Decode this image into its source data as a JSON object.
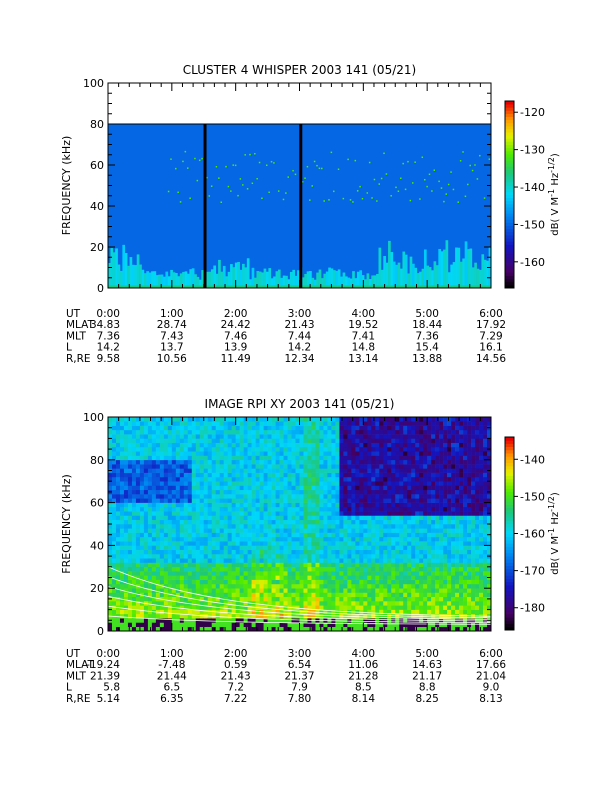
{
  "chart_data": [
    {
      "type": "heatmap",
      "title": "CLUSTER 4 WHISPER 2003 141 (05/21)",
      "ylabel": "FREQUENCY (kHz)",
      "ylim": [
        0,
        100
      ],
      "yticks": [
        "0",
        "20",
        "40",
        "60",
        "80",
        "100"
      ],
      "xlim_hours": [
        0,
        6
      ],
      "colorbar": {
        "label": "dB( V M^-1 Hz^-1/2 )",
        "range": [
          -167,
          -117
        ],
        "ticks": [
          "-120",
          "-130",
          "-140",
          "-150",
          "-160"
        ]
      },
      "data_upper_freq_khz": 80,
      "background_level_db": -150,
      "vertical_gaps_hours": [
        1.52,
        3.02
      ],
      "ephemeris": {
        "labels": [
          "UT",
          "MLAT",
          "MLT",
          "L",
          "R,RE"
        ],
        "ut": [
          "0:00",
          "1:00",
          "2:00",
          "3:00",
          "4:00",
          "5:00",
          "6:00"
        ],
        "mlat": [
          "34.83",
          "28.74",
          "24.42",
          "21.43",
          "19.52",
          "18.44",
          "17.92"
        ],
        "mlt": [
          "7.36",
          "7.43",
          "7.46",
          "7.44",
          "7.41",
          "7.36",
          "7.29"
        ],
        "l": [
          "14.2",
          "13.7",
          "13.9",
          "14.2",
          "14.8",
          "15.4",
          "16.1"
        ],
        "r_re": [
          "9.58",
          "10.56",
          "11.49",
          "12.34",
          "13.14",
          "13.88",
          "14.56"
        ]
      }
    },
    {
      "type": "heatmap",
      "title": "IMAGE RPI XY 2003 141 (05/21)",
      "ylabel": "FREQUENCY (kHz)",
      "ylim": [
        0,
        100
      ],
      "yticks": [
        "0",
        "20",
        "40",
        "60",
        "80",
        "100"
      ],
      "xlim_hours": [
        0,
        6
      ],
      "colorbar": {
        "label": "dB( V M^-1 Hz^-1/2 )",
        "range": [
          -186,
          -134
        ],
        "ticks": [
          "-140",
          "-150",
          "-160",
          "-170",
          "-180"
        ]
      },
      "ephemeris": {
        "labels": [
          "UT",
          "MLAT",
          "MLT",
          "L",
          "R,RE"
        ],
        "ut": [
          "0:00",
          "1:00",
          "2:00",
          "3:00",
          "4:00",
          "5:00",
          "6:00"
        ],
        "mlat": [
          "-19.24",
          "-7.48",
          "0.59",
          "6.54",
          "11.06",
          "14.63",
          "17.66"
        ],
        "mlt": [
          "21.39",
          "21.44",
          "21.43",
          "21.37",
          "21.28",
          "21.17",
          "21.04"
        ],
        "l": [
          "5.8",
          "6.5",
          "7.2",
          "7.9",
          "8.5",
          "8.8",
          "9.0"
        ],
        "r_re": [
          "5.14",
          "6.35",
          "7.22",
          "7.80",
          "8.14",
          "8.25",
          "8.13"
        ]
      }
    }
  ]
}
